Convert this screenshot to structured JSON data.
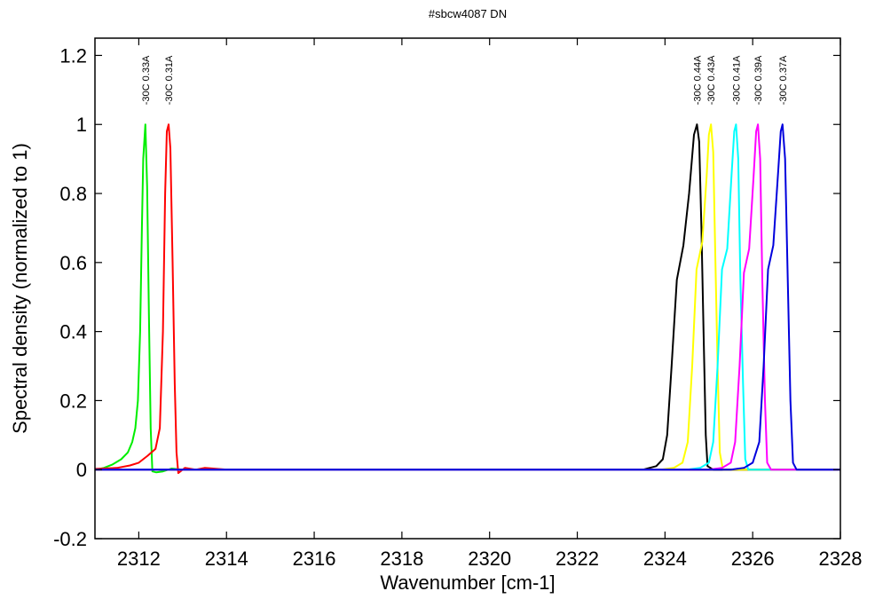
{
  "chart_data": {
    "type": "line",
    "title": "#sbcw4087 DN",
    "xlabel": "Wavenumber [cm-1]",
    "ylabel": "Spectral density (normalized to 1)",
    "xlim": [
      2311,
      2328
    ],
    "ylim": [
      -0.2,
      1.25
    ],
    "x_ticks": [
      "2312",
      "2314",
      "2316",
      "2318",
      "2320",
      "2322",
      "2324",
      "2326",
      "2328"
    ],
    "y_ticks": [
      "-0.2",
      "0",
      "0.2",
      "0.4",
      "0.6",
      "0.8",
      "1",
      "1.2"
    ],
    "grid": false,
    "legend": "none",
    "series": [
      {
        "name": "-30C 0.33A",
        "color": "#00ee00",
        "peak_x": 2312.15,
        "points": [
          [
            2311.0,
            0.0
          ],
          [
            2311.2,
            0.005
          ],
          [
            2311.4,
            0.015
          ],
          [
            2311.6,
            0.03
          ],
          [
            2311.75,
            0.05
          ],
          [
            2311.85,
            0.08
          ],
          [
            2311.92,
            0.12
          ],
          [
            2311.98,
            0.2
          ],
          [
            2312.03,
            0.4
          ],
          [
            2312.07,
            0.7
          ],
          [
            2312.1,
            0.9
          ],
          [
            2312.15,
            1.0
          ],
          [
            2312.19,
            0.82
          ],
          [
            2312.23,
            0.45
          ],
          [
            2312.27,
            0.12
          ],
          [
            2312.31,
            -0.005
          ],
          [
            2312.4,
            -0.008
          ],
          [
            2312.55,
            -0.005
          ],
          [
            2312.75,
            0.003
          ],
          [
            2313.0,
            0.0
          ],
          [
            2328.0,
            0.0
          ]
        ]
      },
      {
        "name": "-30C 0.31A",
        "color": "#ff0000",
        "peak_x": 2312.68,
        "points": [
          [
            2311.0,
            0.002
          ],
          [
            2311.5,
            0.005
          ],
          [
            2311.8,
            0.012
          ],
          [
            2312.0,
            0.02
          ],
          [
            2312.2,
            0.04
          ],
          [
            2312.38,
            0.06
          ],
          [
            2312.48,
            0.12
          ],
          [
            2312.55,
            0.4
          ],
          [
            2312.6,
            0.8
          ],
          [
            2312.64,
            0.98
          ],
          [
            2312.68,
            1.0
          ],
          [
            2312.72,
            0.93
          ],
          [
            2312.77,
            0.6
          ],
          [
            2312.82,
            0.25
          ],
          [
            2312.86,
            0.05
          ],
          [
            2312.9,
            -0.01
          ],
          [
            2313.05,
            0.005
          ],
          [
            2313.3,
            0.0
          ],
          [
            2313.5,
            0.005
          ],
          [
            2314.0,
            0.0
          ],
          [
            2328.0,
            0.0
          ]
        ]
      },
      {
        "name": "-30C 0.44A",
        "color": "#000000",
        "peak_x": 2324.73,
        "points": [
          [
            2311.0,
            0.0
          ],
          [
            2323.5,
            0.0
          ],
          [
            2323.8,
            0.01
          ],
          [
            2323.95,
            0.03
          ],
          [
            2324.05,
            0.1
          ],
          [
            2324.15,
            0.3
          ],
          [
            2324.27,
            0.55
          ],
          [
            2324.42,
            0.65
          ],
          [
            2324.55,
            0.8
          ],
          [
            2324.66,
            0.97
          ],
          [
            2324.73,
            1.0
          ],
          [
            2324.78,
            0.95
          ],
          [
            2324.83,
            0.7
          ],
          [
            2324.88,
            0.4
          ],
          [
            2324.93,
            0.1
          ],
          [
            2324.97,
            0.01
          ],
          [
            2325.1,
            0.0
          ],
          [
            2328.0,
            0.0
          ]
        ]
      },
      {
        "name": "-30C 0.43A",
        "color": "#ffff00",
        "peak_x": 2325.05,
        "points": [
          [
            2311.0,
            0.0
          ],
          [
            2323.9,
            0.0
          ],
          [
            2324.2,
            0.005
          ],
          [
            2324.4,
            0.02
          ],
          [
            2324.52,
            0.08
          ],
          [
            2324.62,
            0.3
          ],
          [
            2324.72,
            0.58
          ],
          [
            2324.85,
            0.66
          ],
          [
            2324.95,
            0.85
          ],
          [
            2325.0,
            0.97
          ],
          [
            2325.05,
            1.0
          ],
          [
            2325.1,
            0.92
          ],
          [
            2325.15,
            0.6
          ],
          [
            2325.2,
            0.3
          ],
          [
            2325.25,
            0.05
          ],
          [
            2325.32,
            0.0
          ],
          [
            2328.0,
            0.0
          ]
        ]
      },
      {
        "name": "-30C 0.41A",
        "color": "#00ffff",
        "peak_x": 2325.62,
        "points": [
          [
            2311.0,
            0.0
          ],
          [
            2324.5,
            0.0
          ],
          [
            2324.8,
            0.005
          ],
          [
            2325.0,
            0.02
          ],
          [
            2325.1,
            0.08
          ],
          [
            2325.2,
            0.3
          ],
          [
            2325.3,
            0.58
          ],
          [
            2325.42,
            0.64
          ],
          [
            2325.52,
            0.86
          ],
          [
            2325.58,
            0.98
          ],
          [
            2325.62,
            1.0
          ],
          [
            2325.67,
            0.9
          ],
          [
            2325.72,
            0.55
          ],
          [
            2325.78,
            0.25
          ],
          [
            2325.83,
            0.03
          ],
          [
            2325.9,
            0.0
          ],
          [
            2328.0,
            0.0
          ]
        ]
      },
      {
        "name": "-30C 0.39A",
        "color": "#ff00ff",
        "peak_x": 2326.12,
        "points": [
          [
            2311.0,
            0.0
          ],
          [
            2325.0,
            0.0
          ],
          [
            2325.3,
            0.005
          ],
          [
            2325.5,
            0.02
          ],
          [
            2325.6,
            0.08
          ],
          [
            2325.7,
            0.3
          ],
          [
            2325.8,
            0.57
          ],
          [
            2325.92,
            0.64
          ],
          [
            2326.02,
            0.85
          ],
          [
            2326.08,
            0.98
          ],
          [
            2326.12,
            1.0
          ],
          [
            2326.17,
            0.9
          ],
          [
            2326.22,
            0.55
          ],
          [
            2326.28,
            0.2
          ],
          [
            2326.33,
            0.02
          ],
          [
            2326.42,
            0.0
          ],
          [
            2328.0,
            0.0
          ]
        ]
      },
      {
        "name": "-30C 0.37A",
        "color": "#0000dd",
        "peak_x": 2326.68,
        "points": [
          [
            2311.0,
            0.0
          ],
          [
            2325.5,
            0.0
          ],
          [
            2325.8,
            0.005
          ],
          [
            2326.0,
            0.02
          ],
          [
            2326.15,
            0.08
          ],
          [
            2326.25,
            0.3
          ],
          [
            2326.35,
            0.58
          ],
          [
            2326.47,
            0.65
          ],
          [
            2326.58,
            0.86
          ],
          [
            2326.64,
            0.98
          ],
          [
            2326.68,
            1.0
          ],
          [
            2326.74,
            0.9
          ],
          [
            2326.8,
            0.55
          ],
          [
            2326.86,
            0.2
          ],
          [
            2326.92,
            0.02
          ],
          [
            2327.0,
            0.0
          ],
          [
            2328.0,
            0.0
          ]
        ]
      }
    ]
  }
}
